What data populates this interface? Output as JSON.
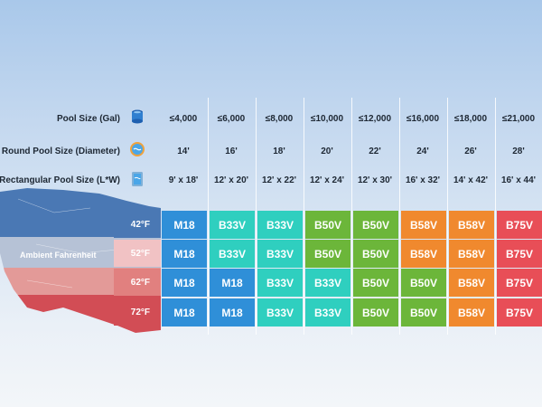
{
  "labels": {
    "pool_size": "Pool Size (Gal)",
    "round": "Round Pool Size (Diameter)",
    "rect": "Rectangular Pool Size (L*W)",
    "ambient": "Ambient Fahrenheit"
  },
  "gallons": [
    "≤4,000",
    "≤6,000",
    "≤8,000",
    "≤10,000",
    "≤12,000",
    "≤16,000",
    "≤18,000",
    "≤21,000"
  ],
  "round": [
    "14'",
    "16'",
    "18'",
    "20'",
    "22'",
    "24'",
    "26'",
    "28'"
  ],
  "rect": [
    "9' x 18'",
    "12' x 20'",
    "12' x 22'",
    "12' x 24'",
    "12' x 30'",
    "16' x 32'",
    "14' x 42'",
    "16' x 44'"
  ],
  "temps": [
    "42°F",
    "52°F",
    "62°F",
    "72°F"
  ],
  "models": [
    [
      "M18",
      "B33V",
      "B33V",
      "B50V",
      "B50V",
      "B58V",
      "B58V",
      "B75V"
    ],
    [
      "M18",
      "B33V",
      "B33V",
      "B50V",
      "B50V",
      "B58V",
      "B58V",
      "B75V"
    ],
    [
      "M18",
      "M18",
      "B33V",
      "B33V",
      "B50V",
      "B50V",
      "B58V",
      "B75V"
    ],
    [
      "M18",
      "M18",
      "B33V",
      "B33V",
      "B50V",
      "B50V",
      "B58V",
      "B75V"
    ]
  ],
  "model_colors": {
    "M18": "#2f8fd8",
    "B33V": "#2fcfbf",
    "B50V": "#6cb63a",
    "B58V": "#f0892e",
    "B75V": "#e84e57"
  },
  "temp_colors": [
    "#4a78b4",
    "#f1c2c4",
    "#e1807f",
    "#d24d55"
  ],
  "icons": [
    "pool-gallon-icon",
    "round-pool-icon",
    "rectangular-pool-icon"
  ]
}
